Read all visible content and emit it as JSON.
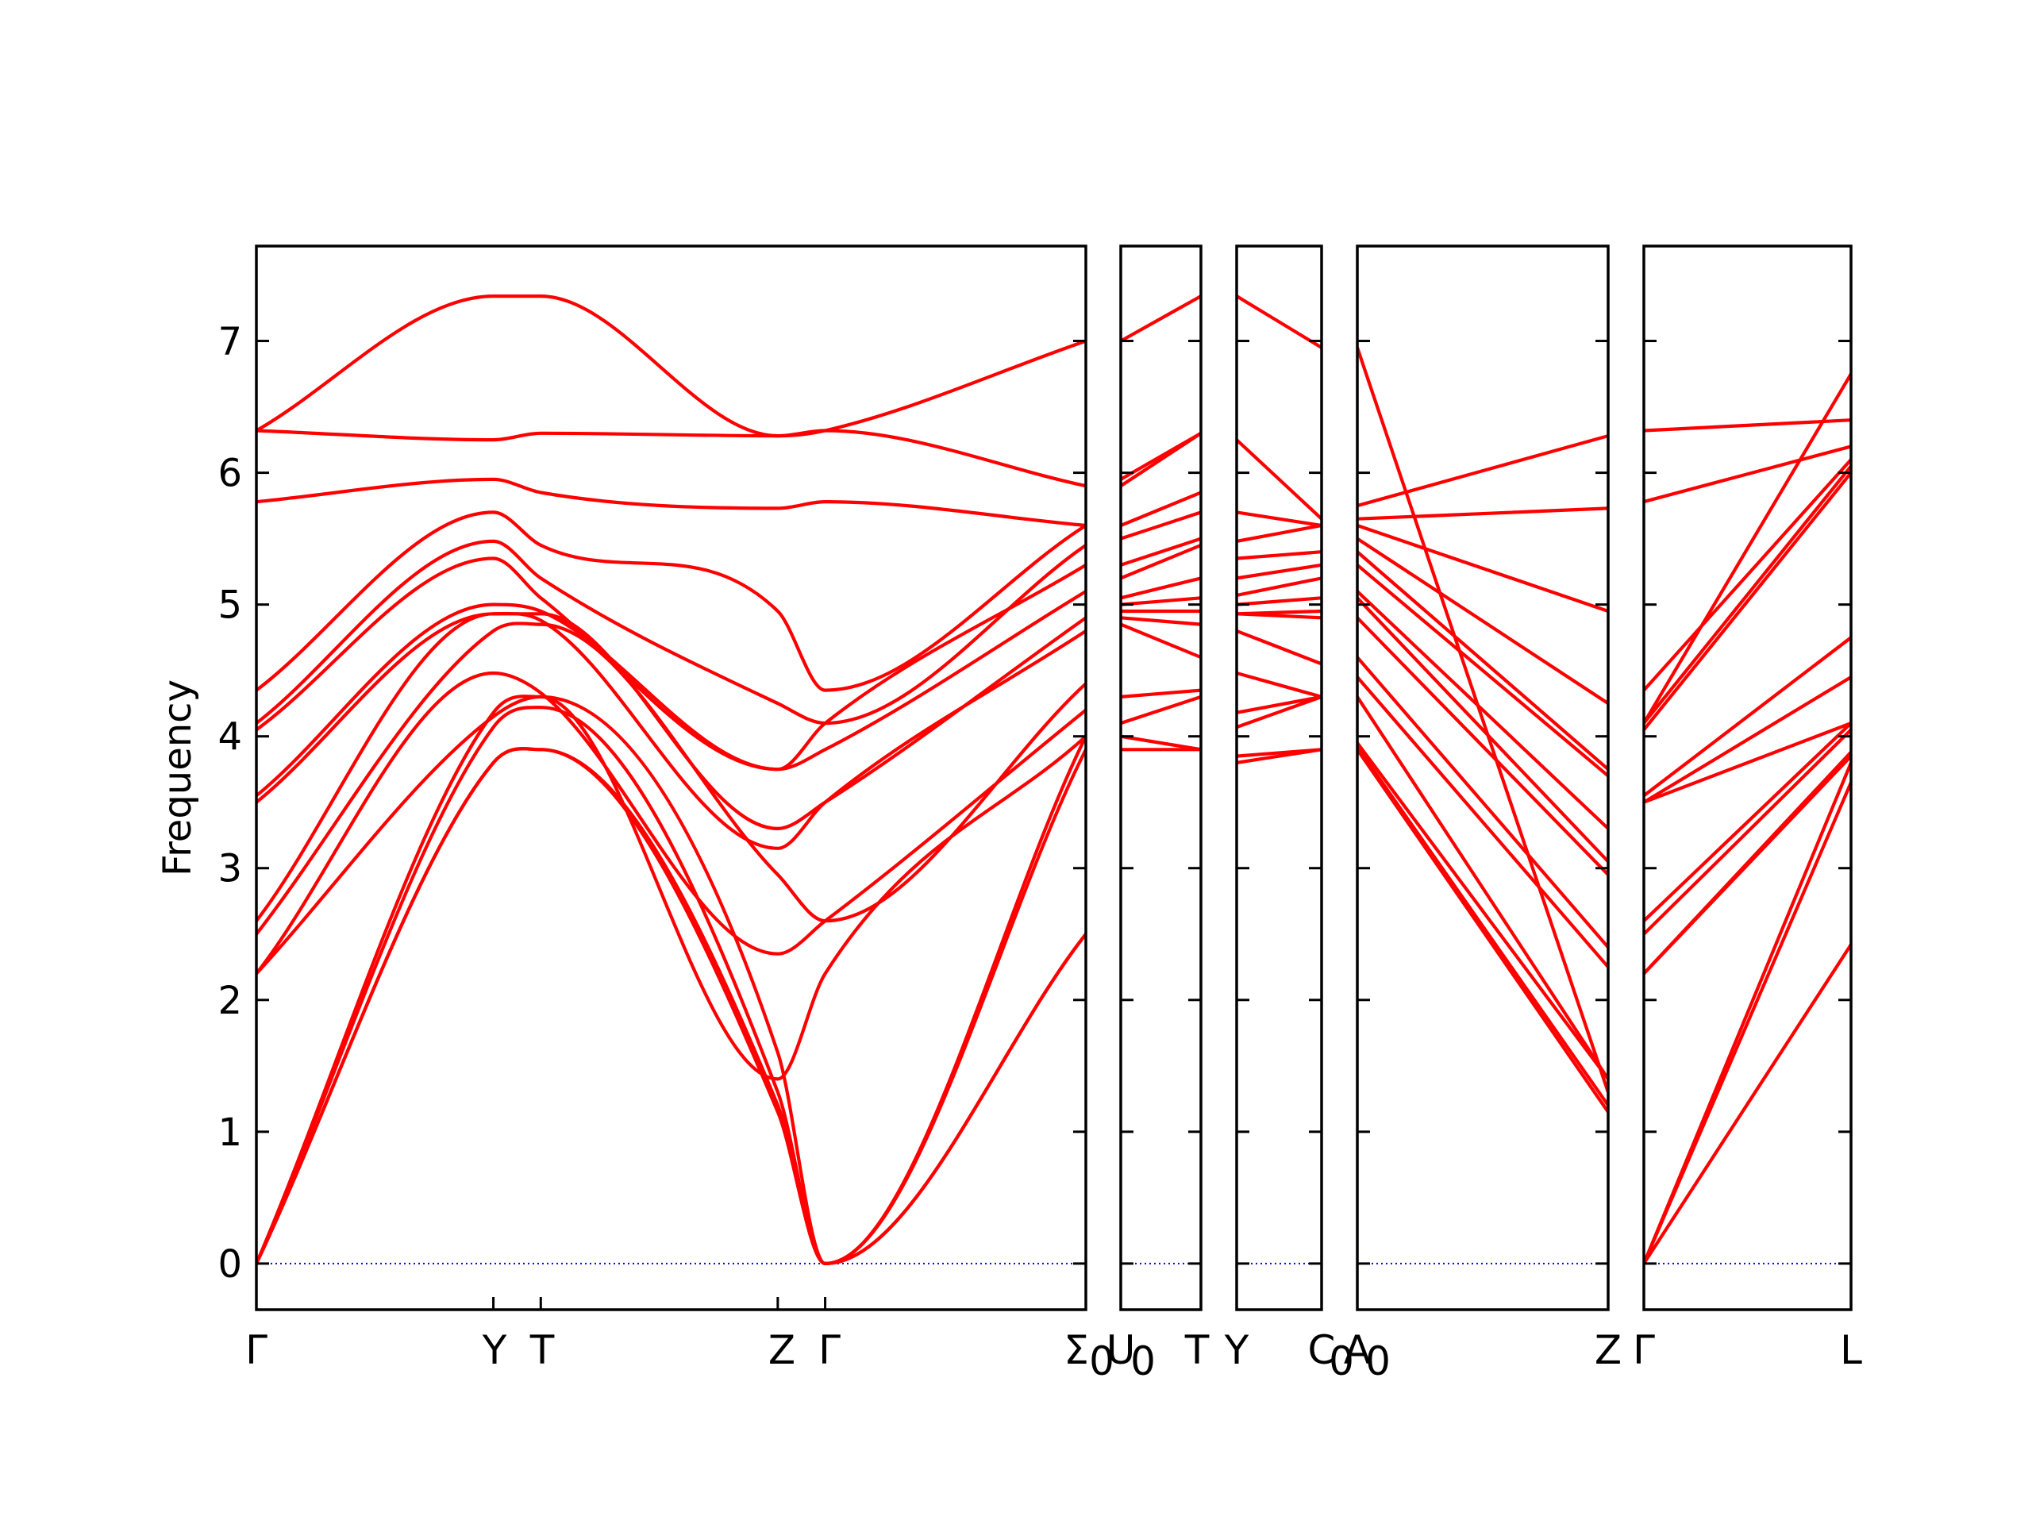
{
  "chart_data": {
    "type": "line",
    "ylabel": "Frequency",
    "ylim": [
      -0.35,
      7.72
    ],
    "yticks": [
      0,
      1,
      2,
      3,
      4,
      5,
      6,
      7
    ],
    "grid": false,
    "zero_line_color": "#0000ff",
    "band_color": "#ff0000",
    "panels": [
      {
        "labels": [
          "Γ",
          "Y",
          "T",
          "Z",
          "Γ",
          "Σ",
          "0"
        ],
        "knots": [
          0.0,
          1.0,
          1.2,
          2.2,
          2.4,
          3.5
        ],
        "bands": [
          [
            0,
            3.8,
            3.9,
            1.2,
            0,
            2.5
          ],
          [
            0,
            3.8,
            3.9,
            1.15,
            0,
            2.5
          ],
          [
            0,
            4.07,
            4.22,
            1.3,
            0,
            3.9
          ],
          [
            0,
            4.18,
            4.3,
            1.6,
            0,
            4.0
          ],
          [
            2.2,
            4.15,
            4.3,
            1.4,
            2.2,
            4.0
          ],
          [
            2.2,
            4.48,
            4.33,
            2.35,
            2.6,
            4.2
          ],
          [
            2.5,
            4.8,
            4.85,
            2.95,
            2.6,
            4.4
          ],
          [
            2.6,
            4.93,
            4.88,
            3.15,
            3.5,
            4.8
          ],
          [
            3.5,
            4.93,
            4.93,
            3.3,
            3.5,
            4.9
          ],
          [
            3.55,
            5.0,
            4.95,
            3.75,
            3.9,
            5.1
          ],
          [
            4.05,
            5.35,
            5.05,
            3.75,
            4.1,
            5.3
          ],
          [
            4.1,
            5.48,
            5.2,
            4.25,
            4.1,
            5.45
          ],
          [
            4.35,
            5.7,
            5.45,
            4.95,
            4.35,
            5.6
          ],
          [
            5.78,
            5.95,
            5.85,
            5.73,
            5.78,
            5.6
          ],
          [
            6.32,
            6.25,
            6.3,
            6.28,
            6.32,
            5.9
          ],
          [
            6.32,
            7.34,
            7.34,
            6.28,
            6.32,
            7.0
          ]
        ]
      },
      {
        "labels": [
          "U",
          "0",
          "T"
        ],
        "knots": [
          0.0,
          1.0
        ],
        "bands": [
          [
            3.9,
            3.9
          ],
          [
            4.0,
            3.9
          ],
          [
            4.1,
            4.3
          ],
          [
            4.3,
            4.35
          ],
          [
            4.85,
            4.6
          ],
          [
            4.9,
            4.85
          ],
          [
            4.95,
            4.95
          ],
          [
            5.0,
            5.05
          ],
          [
            5.05,
            5.2
          ],
          [
            5.2,
            5.45
          ],
          [
            5.3,
            5.5
          ],
          [
            5.5,
            5.7
          ],
          [
            5.6,
            5.85
          ],
          [
            5.9,
            6.3
          ],
          [
            5.95,
            6.3
          ],
          [
            7.0,
            7.34
          ]
        ]
      },
      {
        "labels": [
          "Y",
          "C",
          "0"
        ],
        "knots": [
          0.0,
          1.0
        ],
        "bands": [
          [
            3.8,
            3.9
          ],
          [
            3.85,
            3.9
          ],
          [
            4.07,
            4.3
          ],
          [
            4.18,
            4.3
          ],
          [
            4.48,
            4.3
          ],
          [
            4.8,
            4.55
          ],
          [
            4.93,
            4.9
          ],
          [
            4.93,
            4.95
          ],
          [
            5.0,
            5.05
          ],
          [
            5.07,
            5.2
          ],
          [
            5.2,
            5.3
          ],
          [
            5.35,
            5.4
          ],
          [
            5.48,
            5.6
          ],
          [
            5.7,
            5.6
          ],
          [
            6.25,
            5.65
          ],
          [
            7.34,
            6.95
          ]
        ]
      },
      {
        "labels": [
          "A",
          "0",
          "Z"
        ],
        "knots": [
          0.0,
          1.0
        ],
        "bands": [
          [
            3.9,
            1.15
          ],
          [
            3.92,
            1.2
          ],
          [
            3.95,
            1.4
          ],
          [
            4.3,
            1.4
          ],
          [
            4.45,
            2.25
          ],
          [
            4.6,
            2.4
          ],
          [
            4.9,
            2.95
          ],
          [
            5.05,
            3.05
          ],
          [
            5.1,
            3.3
          ],
          [
            5.3,
            3.7
          ],
          [
            5.4,
            3.75
          ],
          [
            5.5,
            4.25
          ],
          [
            5.6,
            4.95
          ],
          [
            5.65,
            5.73
          ],
          [
            5.75,
            6.28
          ],
          [
            6.95,
            1.3
          ]
        ]
      },
      {
        "labels": [
          "Γ",
          "L"
        ],
        "knots": [
          0.0,
          1.0
        ],
        "bands": [
          [
            0,
            2.42
          ],
          [
            0,
            3.65
          ],
          [
            0,
            3.8
          ],
          [
            2.2,
            3.85
          ],
          [
            2.2,
            3.88
          ],
          [
            2.5,
            4.05
          ],
          [
            2.6,
            4.1
          ],
          [
            3.5,
            4.45
          ],
          [
            3.55,
            4.75
          ],
          [
            4.05,
            6.0
          ],
          [
            4.1,
            6.05
          ],
          [
            4.35,
            6.1
          ],
          [
            5.78,
            6.2
          ],
          [
            6.32,
            6.4
          ],
          [
            4.1,
            6.75
          ],
          [
            3.5,
            4.1
          ]
        ]
      }
    ]
  }
}
